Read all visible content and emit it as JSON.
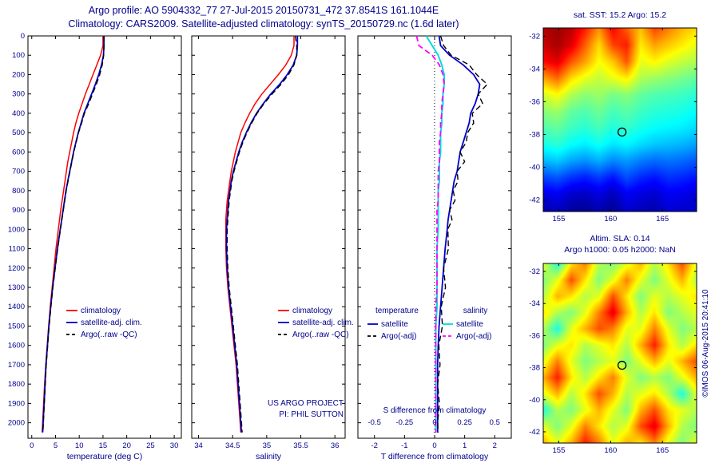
{
  "header": {
    "line1": "Argo profile: AO 5904332_77 27-Jul-2015 20150731_472 37.8541S 161.1044E",
    "line2": "Climatology: CARS2009. Satellite-adjusted climatology: synTS_20150729.nc (1.6d later)"
  },
  "copyright": "©IMOS 06-Aug-2015 20:41:10",
  "colors": {
    "text": "#00008b",
    "climatology": "#ff0000",
    "satellite_clim": "#0000cd",
    "argo": "#000000",
    "sat_T_diff": "#0000cd",
    "argo_T_diff": "#000000",
    "sat_S_diff": "#00dcdc",
    "argo_S_diff": "#ff00ff"
  },
  "chart_data": [
    {
      "id": "temperature-profile",
      "type": "line",
      "xlabel": "temperature (deg C)",
      "xlim": [
        -0.8,
        31.5
      ],
      "ylim": [
        0,
        2080
      ],
      "xticks": [
        0,
        5,
        10,
        15,
        20,
        25,
        30
      ],
      "yticks": [
        0,
        100,
        200,
        300,
        400,
        500,
        600,
        700,
        800,
        900,
        1000,
        1100,
        1200,
        1300,
        1400,
        1500,
        1600,
        1700,
        1800,
        1900,
        2000
      ],
      "depths": [
        0,
        50,
        100,
        150,
        200,
        250,
        300,
        350,
        400,
        450,
        500,
        550,
        600,
        650,
        700,
        750,
        800,
        850,
        900,
        950,
        1000,
        1100,
        1200,
        1300,
        1400,
        1500,
        1600,
        1700,
        1800,
        1900,
        2000,
        2050
      ],
      "series": [
        {
          "name": "climatology",
          "color_key": "climatology",
          "style": "solid",
          "width": 1.5,
          "values": [
            15.0,
            15.0,
            14.5,
            13.7,
            12.9,
            12.1,
            11.3,
            10.6,
            9.9,
            9.3,
            8.8,
            8.4,
            8.0,
            7.6,
            7.3,
            7.0,
            6.7,
            6.4,
            6.1,
            5.85,
            5.6,
            5.1,
            4.7,
            4.3,
            3.9,
            3.55,
            3.25,
            2.95,
            2.7,
            2.5,
            2.3,
            2.2
          ]
        },
        {
          "name": "satellite-adj. clim.",
          "color_key": "satellite_clim",
          "style": "solid",
          "width": 1.8,
          "values": [
            15.2,
            15.2,
            15.1,
            14.7,
            14.1,
            13.4,
            12.6,
            11.8,
            11.0,
            10.4,
            9.8,
            9.3,
            8.8,
            8.4,
            8.0,
            7.6,
            7.2,
            6.9,
            6.6,
            6.3,
            6.0,
            5.4,
            4.9,
            4.4,
            4.0,
            3.6,
            3.3,
            3.0,
            2.8,
            2.6,
            2.4,
            2.3
          ]
        },
        {
          "name": "Argo(..raw -QC)",
          "color_key": "argo",
          "style": "dashed",
          "width": 1.4,
          "values": [
            15.2,
            15.2,
            15.15,
            14.85,
            14.3,
            13.6,
            12.8,
            12.0,
            11.1,
            10.5,
            9.85,
            9.35,
            8.85,
            8.45,
            8.05,
            7.65,
            7.25,
            6.95,
            6.65,
            6.35,
            6.05,
            5.45,
            4.95,
            4.45,
            4.05,
            3.65,
            3.35,
            3.05,
            2.85,
            2.65,
            2.45,
            2.35
          ]
        }
      ]
    },
    {
      "id": "salinity-profile",
      "type": "line",
      "xlabel": "salinity",
      "xlim": [
        33.9,
        36.15
      ],
      "ylim": [
        0,
        2080
      ],
      "xticks": [
        34,
        34.5,
        35,
        35.5,
        36
      ],
      "xtick_labels": [
        "34",
        "34.5",
        "35",
        "35.5",
        "36"
      ],
      "yticks": [
        0,
        100,
        200,
        300,
        400,
        500,
        600,
        700,
        800,
        900,
        1000,
        1100,
        1200,
        1300,
        1400,
        1500,
        1600,
        1700,
        1800,
        1900,
        2000
      ],
      "depths": [
        0,
        50,
        100,
        150,
        200,
        250,
        300,
        350,
        400,
        450,
        500,
        550,
        600,
        650,
        700,
        750,
        800,
        850,
        900,
        950,
        1000,
        1100,
        1200,
        1300,
        1400,
        1500,
        1600,
        1700,
        1800,
        1900,
        2000,
        2050
      ],
      "notes": [
        "US ARGO PROJECT",
        "PI: PHIL SUTTON"
      ],
      "series": [
        {
          "name": "climatology",
          "color_key": "climatology",
          "style": "solid",
          "width": 1.5,
          "values": [
            35.4,
            35.4,
            35.36,
            35.28,
            35.17,
            35.05,
            34.93,
            34.83,
            34.75,
            34.68,
            34.62,
            34.58,
            34.54,
            34.51,
            34.48,
            34.46,
            34.44,
            34.42,
            34.41,
            34.4,
            34.4,
            34.4,
            34.41,
            34.43,
            34.46,
            34.49,
            34.52,
            34.55,
            34.57,
            34.59,
            34.61,
            34.62
          ]
        },
        {
          "name": "satellite-adj. clim.",
          "color_key": "satellite_clim",
          "style": "solid",
          "width": 1.8,
          "values": [
            35.45,
            35.45,
            35.44,
            35.39,
            35.3,
            35.19,
            35.06,
            34.95,
            34.85,
            34.77,
            34.7,
            34.64,
            34.59,
            34.55,
            34.51,
            34.48,
            34.46,
            34.44,
            34.43,
            34.42,
            34.41,
            34.41,
            34.42,
            34.44,
            34.47,
            34.5,
            34.53,
            34.56,
            34.58,
            34.6,
            34.62,
            34.63
          ]
        },
        {
          "name": "Argo(..raw -QC)",
          "color_key": "argo",
          "style": "dashed",
          "width": 1.4,
          "values": [
            35.42,
            35.44,
            35.44,
            35.4,
            35.32,
            35.21,
            35.08,
            34.96,
            34.86,
            34.78,
            34.71,
            34.65,
            34.6,
            34.56,
            34.52,
            34.49,
            34.47,
            34.45,
            34.44,
            34.43,
            34.42,
            34.42,
            34.43,
            34.45,
            34.48,
            34.51,
            34.54,
            34.57,
            34.59,
            34.61,
            34.63,
            34.64
          ]
        }
      ]
    },
    {
      "id": "difference-profile",
      "type": "line",
      "xlabel": "T difference from climatology",
      "xlim": [
        -2.55,
        2.55
      ],
      "ylim": [
        0,
        2080
      ],
      "xticks": [
        -2,
        -1,
        0,
        1,
        2
      ],
      "yticks": [
        0,
        100,
        200,
        300,
        400,
        500,
        600,
        700,
        800,
        900,
        1000,
        1100,
        1200,
        1300,
        1400,
        1500,
        1600,
        1700,
        1800,
        1900,
        2000
      ],
      "zero_line": true,
      "inner_axis": {
        "label": "S difference from climatology",
        "ticks": [
          -0.5,
          -0.25,
          0,
          0.25,
          0.5
        ],
        "tick_labels": [
          "-0.5",
          "-0.25",
          "0",
          "0.25",
          "0.5"
        ],
        "scale": 4
      },
      "legend_groups": [
        {
          "header": "temperature",
          "entries": [
            {
              "label": "satellite",
              "color_key": "sat_T_diff",
              "style": "solid"
            },
            {
              "label": "Argo(-adj)",
              "color_key": "argo_T_diff",
              "style": "dashed"
            }
          ]
        },
        {
          "header": "salinity",
          "entries": [
            {
              "label": "satellite",
              "color_key": "sat_S_diff",
              "style": "solid"
            },
            {
              "label": "Argo(-adj)",
              "color_key": "argo_S_diff",
              "style": "dashed"
            }
          ]
        }
      ],
      "depths": [
        0,
        50,
        100,
        150,
        200,
        250,
        300,
        350,
        400,
        450,
        500,
        550,
        600,
        650,
        700,
        750,
        800,
        850,
        900,
        950,
        1000,
        1100,
        1200,
        1300,
        1400,
        1500,
        1600,
        1700,
        1800,
        1900,
        2000,
        2050
      ],
      "series": [
        {
          "name": "salinity satellite",
          "axis": "S",
          "color_key": "sat_S_diff",
          "style": "solid",
          "width": 2,
          "values": [
            -0.07,
            -0.02,
            0.03,
            0.06,
            0.08,
            0.08,
            0.07,
            0.07,
            0.06,
            0.06,
            0.05,
            0.05,
            0.05,
            0.04,
            0.04,
            0.04,
            0.03,
            0.03,
            0.03,
            0.03,
            0.03,
            0.02,
            0.02,
            0.02,
            0.02,
            0.01,
            0.01,
            0.01,
            0.01,
            0.01,
            0.01,
            0.01
          ]
        },
        {
          "name": "salinity Argo(-adj)",
          "axis": "S",
          "color_key": "argo_S_diff",
          "style": "dashed",
          "width": 1.8,
          "values": [
            -0.15,
            -0.13,
            -0.02,
            0.04,
            0.07,
            0.08,
            0.07,
            0.06,
            0.06,
            0.05,
            0.05,
            0.04,
            0.04,
            0.04,
            0.03,
            0.03,
            0.03,
            0.03,
            0.02,
            0.02,
            0.02,
            0.02,
            0.02,
            0.02,
            0.01,
            0.01,
            0.01,
            0.01,
            0.01,
            0.01,
            0.01,
            0.01
          ]
        },
        {
          "name": "temperature satellite",
          "axis": "T",
          "color_key": "sat_T_diff",
          "style": "solid",
          "width": 1.8,
          "values": [
            0.15,
            0.2,
            0.5,
            0.95,
            1.3,
            1.5,
            1.45,
            1.35,
            1.2,
            1.15,
            1.05,
            0.95,
            0.85,
            0.8,
            0.75,
            0.65,
            0.6,
            0.55,
            0.5,
            0.45,
            0.42,
            0.35,
            0.3,
            0.25,
            0.2,
            0.15,
            0.12,
            0.1,
            0.1,
            0.1,
            0.1,
            0.1
          ]
        },
        {
          "name": "temperature Argo(-adj)",
          "axis": "T",
          "color_key": "argo_T_diff",
          "style": "dashed",
          "width": 1.4,
          "values": [
            0.2,
            0.3,
            0.55,
            1.15,
            1.4,
            1.75,
            1.45,
            1.6,
            1.25,
            1.3,
            1.1,
            1.05,
            0.85,
            1.0,
            0.75,
            0.78,
            0.62,
            0.68,
            0.5,
            0.58,
            0.44,
            0.46,
            0.3,
            0.36,
            0.22,
            0.26,
            0.14,
            0.18,
            0.1,
            0.16,
            0.1,
            0.12
          ]
        }
      ]
    },
    {
      "id": "sst-map",
      "type": "heatmap",
      "title": "sat. SST: 15.2 Argo: 15.2",
      "xticks": [
        155,
        160,
        165
      ],
      "yticks": [
        -32,
        -34,
        -36,
        -38,
        -40,
        -42
      ],
      "lon_range": [
        153.5,
        168.3
      ],
      "lat_range": [
        -31.5,
        -42.7
      ],
      "vmin": 10.2,
      "vmax": 20.8,
      "marker": {
        "lon": 161.1,
        "lat": -37.85
      },
      "grid": [
        [
          20.3,
          20.5,
          20.2,
          19.2,
          18.0,
          19.5,
          18.5,
          17.5,
          18.8,
          18.2,
          17.6,
          17.2
        ],
        [
          20.0,
          20.4,
          19.8,
          18.5,
          17.2,
          18.8,
          19.2,
          17.0,
          17.8,
          17.4,
          17.0,
          16.6
        ],
        [
          19.4,
          19.8,
          18.6,
          17.8,
          16.8,
          17.4,
          18.6,
          16.6,
          16.9,
          16.5,
          16.2,
          16.0
        ],
        [
          17.8,
          18.4,
          17.2,
          16.6,
          16.2,
          16.6,
          17.0,
          16.0,
          15.8,
          15.6,
          15.4,
          15.2
        ],
        [
          16.4,
          16.8,
          16.0,
          15.6,
          15.8,
          15.4,
          15.6,
          15.2,
          15.0,
          14.9,
          14.8,
          14.6
        ],
        [
          15.6,
          15.8,
          15.2,
          15.0,
          15.3,
          14.9,
          15.1,
          14.8,
          14.6,
          14.5,
          14.4,
          14.2
        ],
        [
          15.0,
          15.2,
          14.8,
          14.6,
          14.9,
          14.5,
          14.7,
          14.4,
          14.2,
          14.1,
          14.0,
          13.8
        ],
        [
          14.4,
          14.6,
          14.2,
          14.0,
          14.3,
          13.9,
          14.1,
          13.8,
          13.6,
          13.5,
          13.4,
          13.2
        ],
        [
          13.4,
          13.6,
          13.2,
          13.0,
          13.3,
          12.9,
          13.1,
          12.8,
          12.6,
          12.7,
          12.6,
          12.4
        ],
        [
          12.2,
          12.4,
          12.0,
          11.8,
          12.1,
          11.7,
          12.3,
          11.9,
          11.7,
          12.0,
          11.9,
          11.7
        ],
        [
          11.2,
          11.4,
          11.0,
          10.9,
          11.2,
          10.8,
          11.4,
          11.2,
          11.0,
          11.4,
          11.3,
          11.1
        ],
        [
          10.6,
          10.8,
          10.5,
          10.4,
          10.7,
          10.4,
          11.0,
          10.8,
          10.7,
          11.1,
          11.0,
          10.9
        ]
      ]
    },
    {
      "id": "sla-map",
      "type": "heatmap",
      "title": "Altim. SLA: 0.14",
      "subtitle": "Argo h1000: 0.05 h2000: NaN",
      "xticks": [
        155,
        160,
        165
      ],
      "yticks": [
        -32,
        -34,
        -36,
        -38,
        -40,
        -42
      ],
      "lon_range": [
        153.5,
        168.3
      ],
      "lat_range": [
        -31.5,
        -42.7
      ],
      "vmin": -0.45,
      "vmax": 0.55,
      "marker": {
        "lon": 161.1,
        "lat": -37.85
      },
      "grid": [
        [
          0.15,
          -0.05,
          0.2,
          0.3,
          0.1,
          0.05,
          0.15,
          0.25,
          0.1,
          0.2,
          0.35,
          0.15
        ],
        [
          0.05,
          0.15,
          0.35,
          0.2,
          0.05,
          0.15,
          0.3,
          0.15,
          0.05,
          0.15,
          0.25,
          0.1
        ],
        [
          0.1,
          0.25,
          0.2,
          0.1,
          0.15,
          0.35,
          0.2,
          0.05,
          0.15,
          0.1,
          0.15,
          0.2
        ],
        [
          0.2,
          0.1,
          0.05,
          0.15,
          0.3,
          0.45,
          0.25,
          0.1,
          0.2,
          0.05,
          0.1,
          0.15
        ],
        [
          0.1,
          -0.05,
          0.15,
          0.25,
          0.35,
          0.3,
          0.15,
          0.15,
          0.3,
          0.15,
          0.05,
          0.1
        ],
        [
          0.05,
          0.15,
          0.2,
          0.1,
          0.15,
          0.2,
          0.1,
          0.25,
          0.4,
          0.2,
          0.1,
          0.2
        ],
        [
          0.15,
          0.3,
          0.15,
          0.05,
          0.1,
          0.15,
          0.05,
          0.15,
          0.25,
          0.15,
          0.25,
          0.35
        ],
        [
          0.25,
          0.4,
          0.2,
          0.1,
          0.2,
          0.3,
          0.15,
          0.05,
          0.1,
          0.05,
          0.15,
          0.25
        ],
        [
          0.15,
          0.25,
          0.1,
          0.2,
          0.35,
          0.25,
          0.1,
          0.15,
          0.2,
          0.1,
          -0.05,
          0.15
        ],
        [
          -0.05,
          0.1,
          0.05,
          0.15,
          0.25,
          0.15,
          0.05,
          0.25,
          0.35,
          0.2,
          0.15,
          0.1
        ],
        [
          0.15,
          0.05,
          0.15,
          0.3,
          0.2,
          0.1,
          0.15,
          0.35,
          0.45,
          0.25,
          0.1,
          0.05
        ],
        [
          0.25,
          0.15,
          0.25,
          0.4,
          0.3,
          0.15,
          0.25,
          0.2,
          0.3,
          0.15,
          0.05,
          0.15
        ]
      ]
    }
  ]
}
